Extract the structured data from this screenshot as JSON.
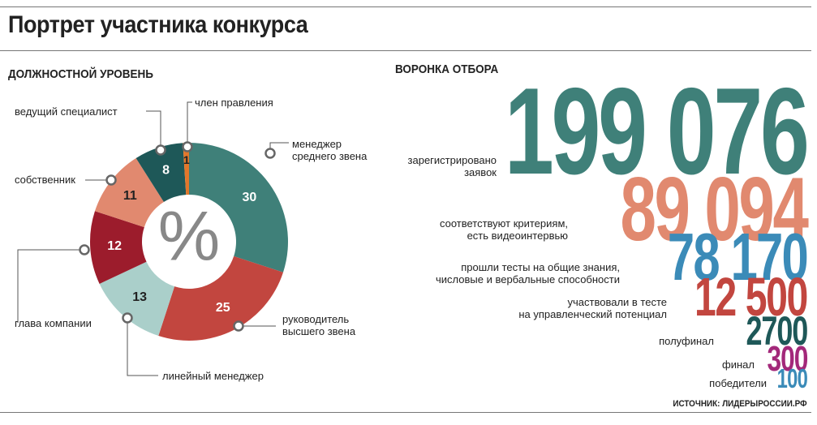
{
  "title": "Портрет участника конкурса",
  "source": "ИСТОЧНИК: ЛИДЕРЫРОССИИ.РФ",
  "chart_data": [
    {
      "type": "pie",
      "title": "ДОЛЖНОСТНОЙ УРОВЕНЬ",
      "center_label": "%",
      "categories": [
        "менеджер\nсреднего звена",
        "руководитель\nвысшего звена",
        "линейный менеджер",
        "глава компании",
        "собственник",
        "ведущий специалист",
        "член правления"
      ],
      "values": [
        30,
        25,
        13,
        12,
        11,
        8,
        1
      ],
      "colors": [
        "#3f8079",
        "#c2463f",
        "#aacfca",
        "#9c1c2c",
        "#e1896f",
        "#1e5858",
        "#e2772b"
      ]
    },
    {
      "type": "funnel",
      "title": "ВОРОНКА ОТБОРА",
      "categories": [
        "зарегистрировано\nзаявок",
        "соответствуют критериям,\nесть видеоинтервью",
        "прошли тесты на общие знания,\nчисловые и вербальные способности",
        "участвовали в тесте\nна управленческий потенциал",
        "полуфинал",
        "финал",
        "победители"
      ],
      "values": [
        199076,
        89094,
        78170,
        12500,
        2700,
        300,
        100
      ],
      "value_labels": [
        "199 076",
        "89 094",
        "78 170",
        "12 500",
        "2700",
        "300",
        "100"
      ],
      "colors": [
        "#3f8079",
        "#e1896f",
        "#3b8bb8",
        "#c2463f",
        "#1e5858",
        "#a3287a",
        "#3b8bb8"
      ]
    }
  ]
}
